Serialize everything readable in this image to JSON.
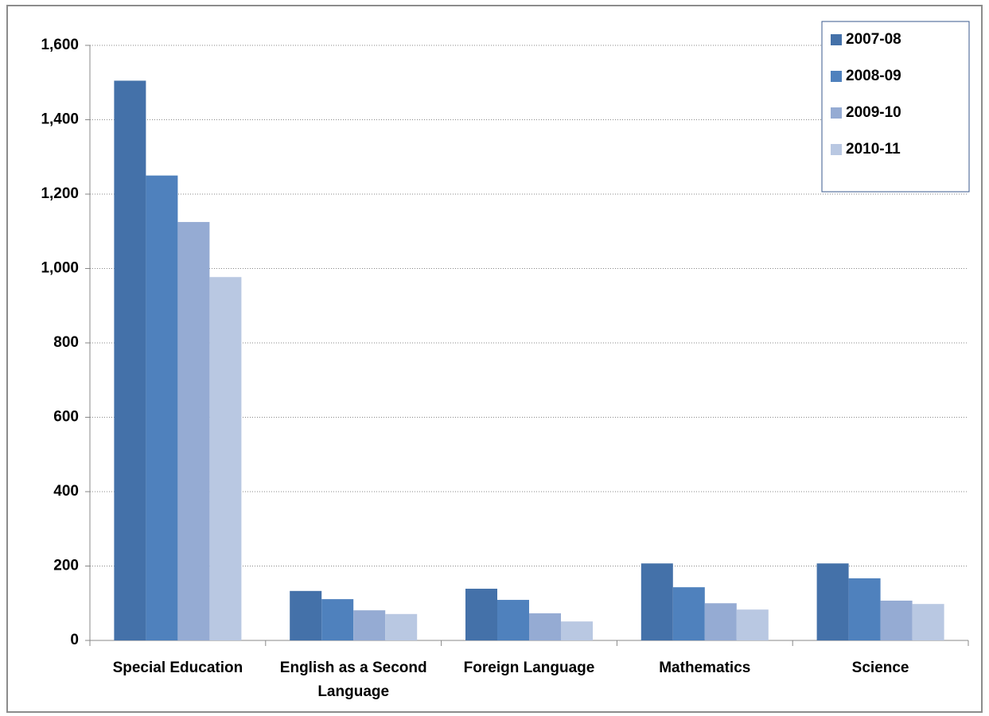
{
  "chart_data": {
    "type": "bar",
    "categories": [
      "Special Education",
      "English as a Second Language",
      "Foreign Language",
      "Mathematics",
      "Science"
    ],
    "series": [
      {
        "name": "2007-08",
        "color": "#4471a9",
        "values": [
          1505,
          133,
          139,
          207,
          207
        ]
      },
      {
        "name": "2008-09",
        "color": "#4f81bd",
        "values": [
          1250,
          111,
          109,
          143,
          167
        ]
      },
      {
        "name": "2009-10",
        "color": "#95abd3",
        "values": [
          1125,
          81,
          73,
          100,
          107
        ]
      },
      {
        "name": "2010-11",
        "color": "#b9c8e2",
        "values": [
          977,
          71,
          51,
          83,
          98
        ]
      }
    ],
    "ylim": [
      0,
      1600
    ],
    "yticks": [
      0,
      200,
      400,
      600,
      800,
      {
        "value": 1000,
        "label": "1,000"
      },
      {
        "value": 1200,
        "label": "1,200"
      },
      {
        "value": 1400,
        "label": "1,400"
      },
      {
        "value": 1600,
        "label": "1,600"
      }
    ],
    "grid": true,
    "legend": "top-right"
  }
}
